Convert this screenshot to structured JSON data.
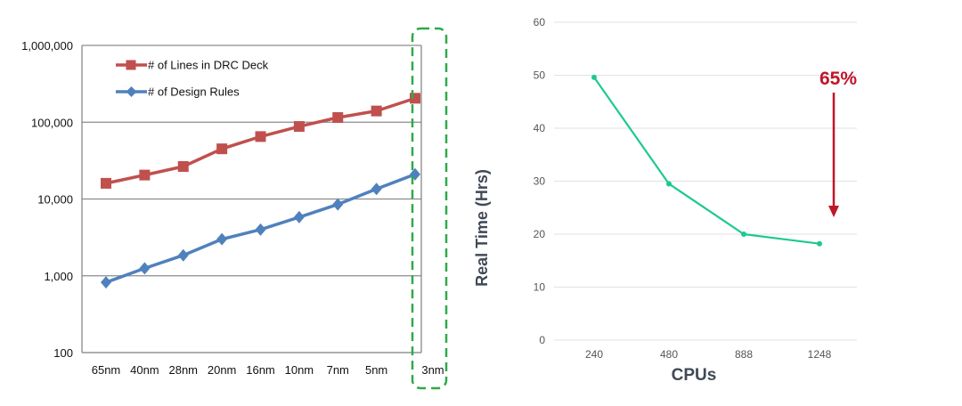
{
  "chart_data": [
    {
      "type": "line",
      "title": "",
      "xlabel": "",
      "ylabel": "",
      "yscale": "log",
      "ylim": [
        100,
        1000000
      ],
      "y_ticks": [
        100,
        1000,
        10000,
        100000,
        1000000
      ],
      "y_tick_labels": [
        "100",
        "1,000",
        "10,000",
        "100,000",
        "1,000,000"
      ],
      "categories": [
        "65nm",
        "40nm",
        "28nm",
        "20nm",
        "16nm",
        "10nm",
        "7nm",
        "5nm",
        "3nm"
      ],
      "grid": true,
      "legend_position": "top-left",
      "series": [
        {
          "name": "# of Lines in DRC Deck",
          "marker": "square",
          "color": "#c0504d",
          "values": [
            16000,
            20500,
            26500,
            45000,
            65000,
            88000,
            115000,
            140000,
            205000
          ]
        },
        {
          "name": "# of Design Rules",
          "marker": "diamond",
          "color": "#4f81bd",
          "values": [
            820,
            1250,
            1850,
            3000,
            4000,
            5800,
            8500,
            13500,
            21000
          ]
        }
      ],
      "highlight": {
        "category": "3nm",
        "style": "dashed-box",
        "color": "#2eaa4a"
      }
    },
    {
      "type": "line",
      "title": "",
      "xlabel": "CPUs",
      "ylabel": "Real Time (Hrs)",
      "ylim": [
        0,
        60
      ],
      "y_ticks": [
        0,
        10,
        20,
        30,
        40,
        50,
        60
      ],
      "categories": [
        "240",
        "480",
        "888",
        "1248"
      ],
      "grid": true,
      "series": [
        {
          "color": "#1ec98f",
          "values": [
            49.6,
            29.5,
            20,
            18.2
          ]
        }
      ],
      "annotation": {
        "text": "65%",
        "color": "#c0152a",
        "arrow": "down"
      }
    }
  ]
}
